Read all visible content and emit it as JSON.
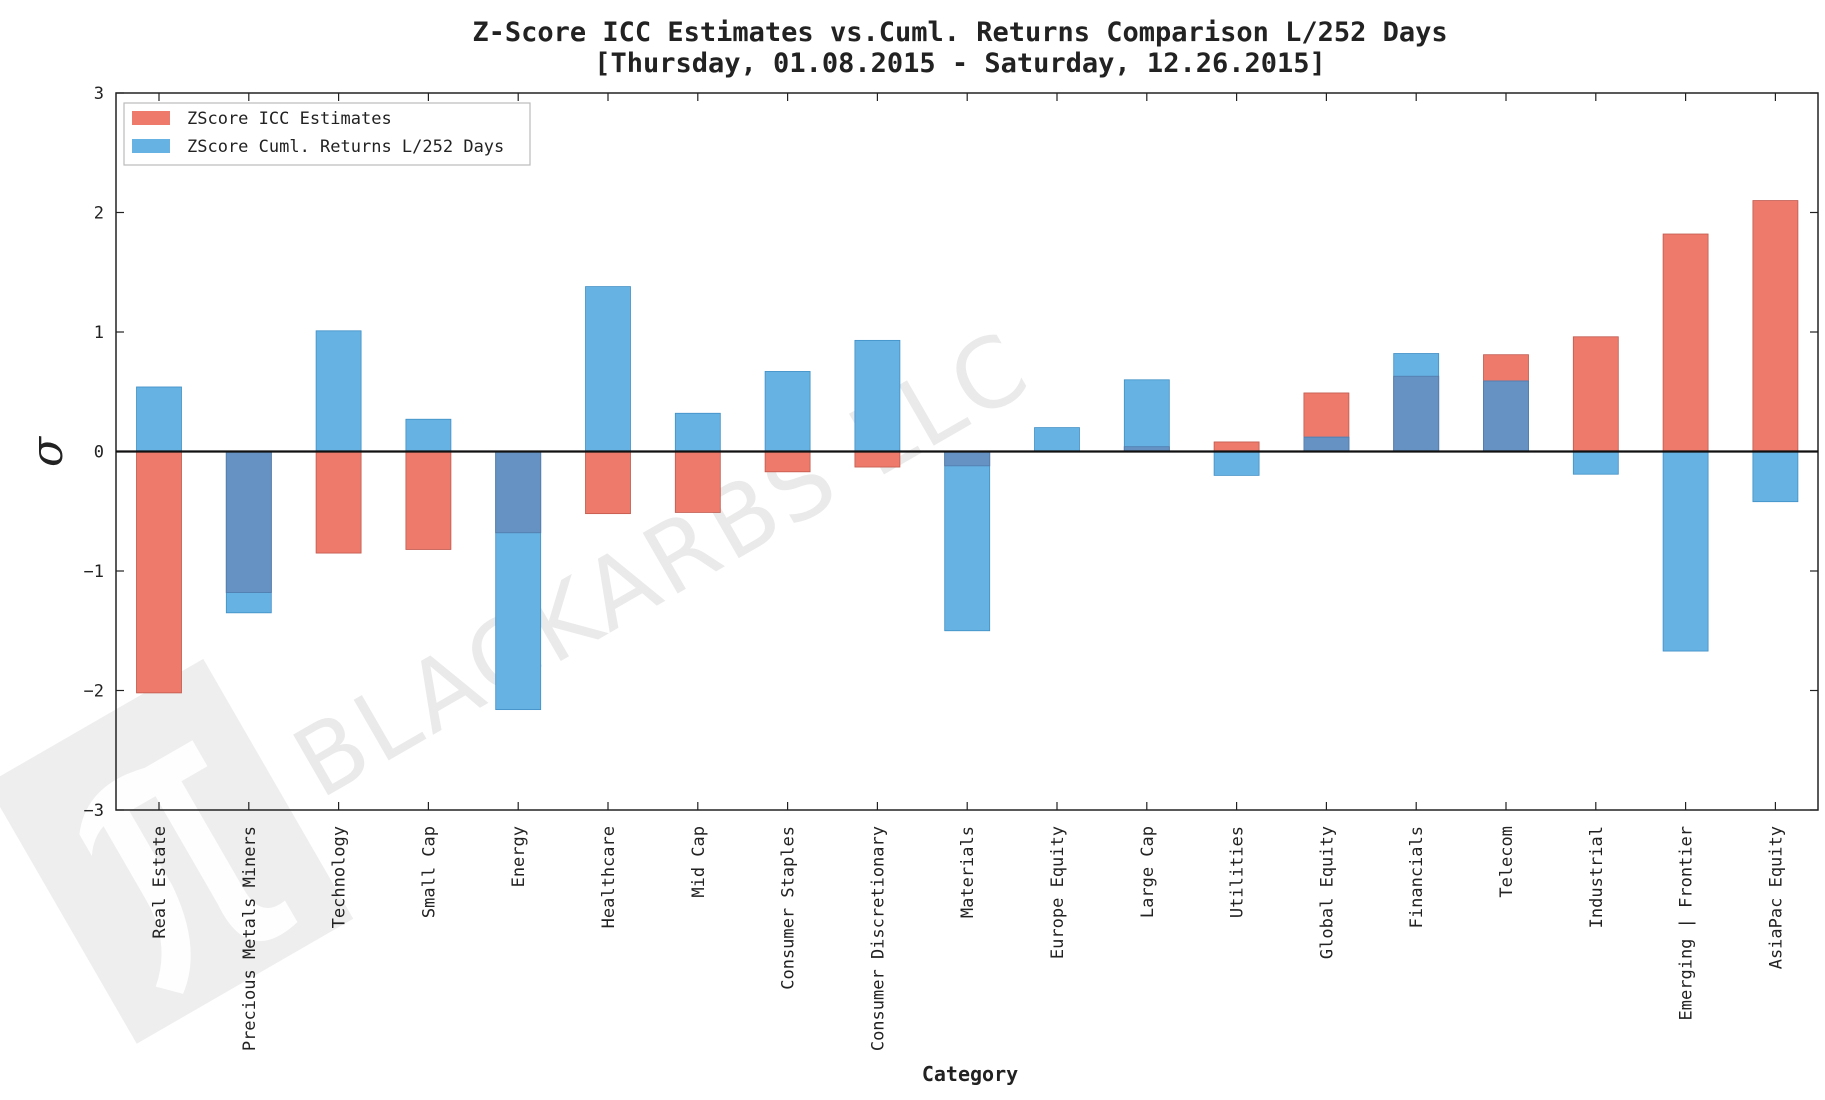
{
  "chart_data": {
    "type": "bar",
    "title": "Z-Score ICC Estimates vs.Cuml. Returns Comparison L/252 Days",
    "subtitle": "[Thursday, 01.08.2015 - Saturday, 12.26.2015]",
    "xlabel": "Category",
    "ylabel": "σ",
    "ylim": [
      -3,
      3
    ],
    "yticks": [
      -3,
      -2,
      -1,
      0,
      1,
      2,
      3
    ],
    "grid": false,
    "legend_position": "top-left",
    "categories": [
      "Real Estate",
      "Precious Metals Miners",
      "Technology",
      "Small Cap",
      "Energy",
      "Healthcare",
      "Mid Cap",
      "Consumer Staples",
      "Consumer Discretionary",
      "Materials",
      "Europe Equity",
      "Large Cap",
      "Utilities",
      "Global Equity",
      "Financials",
      "Telecom",
      "Industrial",
      "Emerging | Frontier",
      "AsiaPac Equity"
    ],
    "series": [
      {
        "name": "ZScore ICC Estimates",
        "color": "#ee7a6c",
        "values": [
          -2.02,
          -1.18,
          -0.85,
          -0.82,
          -0.68,
          -0.52,
          -0.51,
          -0.17,
          -0.13,
          -0.12,
          0.0,
          0.04,
          0.08,
          0.49,
          0.63,
          0.81,
          0.96,
          1.82,
          2.1
        ]
      },
      {
        "name": "ZScore Cuml. Returns L/252 Days",
        "color": "#66b2e3",
        "values": [
          0.54,
          -1.35,
          1.01,
          0.27,
          -2.16,
          1.38,
          0.32,
          0.67,
          0.93,
          -1.5,
          0.2,
          0.6,
          -0.2,
          0.12,
          0.82,
          0.59,
          -0.19,
          -1.67,
          -0.42
        ]
      }
    ],
    "overlap_color": "#6592c3"
  },
  "watermark": {
    "text": "BLACKARBS LLC",
    "logo_icon": "pi-logo-icon"
  }
}
